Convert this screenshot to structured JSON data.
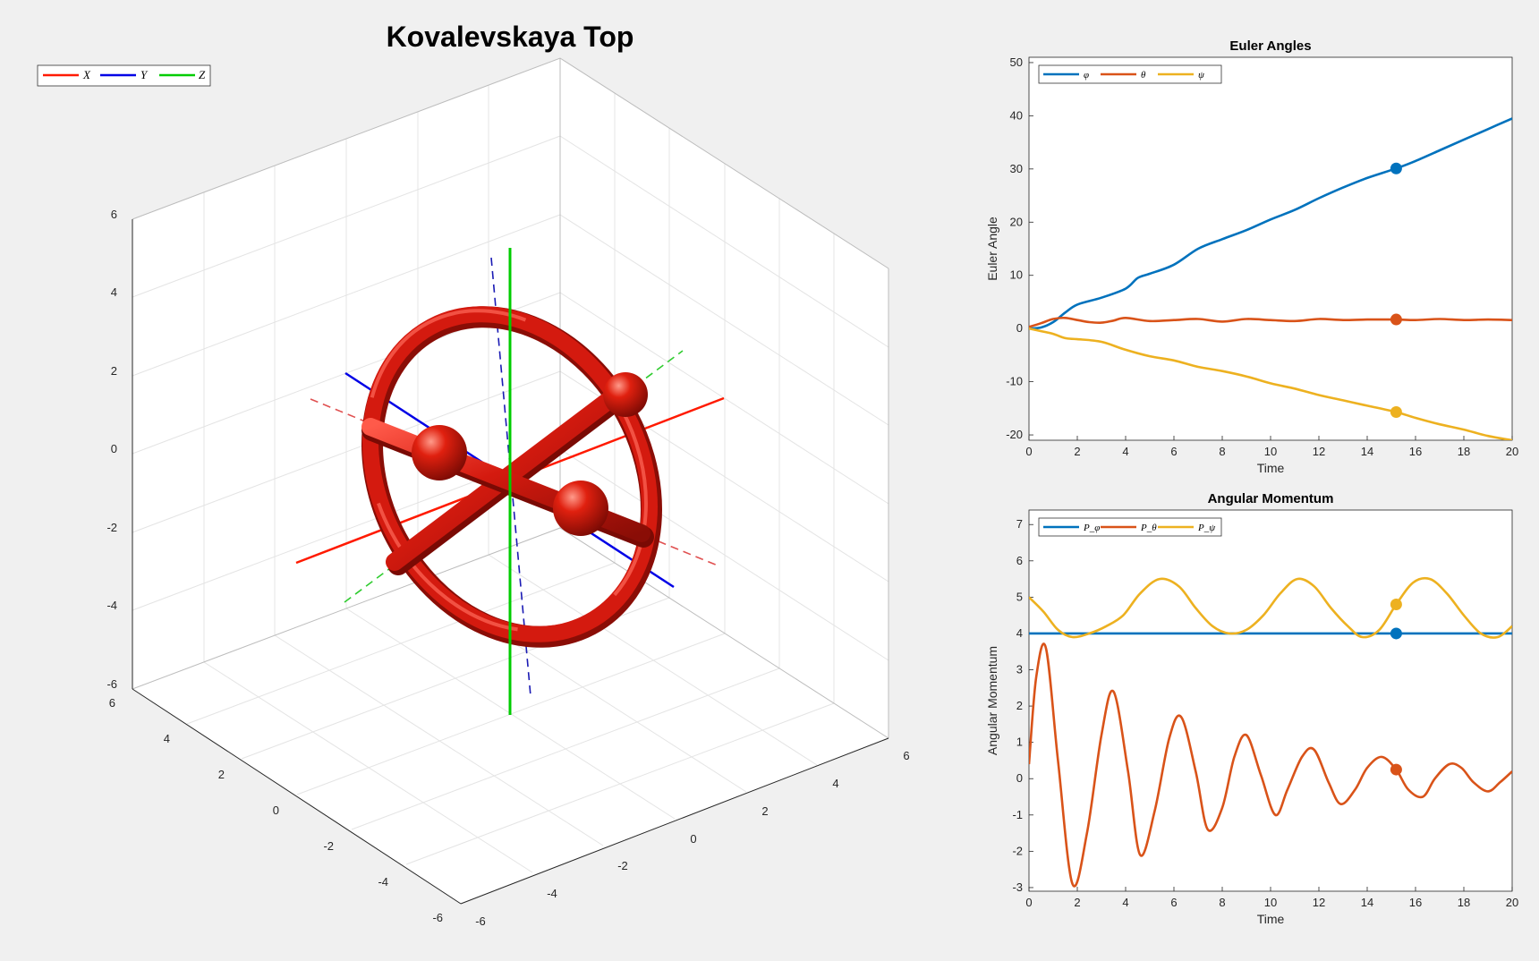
{
  "figure": {
    "title": "Kovalevskaya Top",
    "legend": [
      {
        "label": "X",
        "color": "#ff1a00"
      },
      {
        "label": "Y",
        "color": "#0000e6"
      },
      {
        "label": "Z",
        "color": "#00cc00"
      }
    ],
    "axes3d": {
      "z_ticks": [
        "6",
        "4",
        "2",
        "0",
        "-2",
        "-4",
        "-6"
      ],
      "y_ticks": [
        "6",
        "4",
        "2",
        "0",
        "-2",
        "-4",
        "-6"
      ],
      "x_ticks": [
        "-6",
        "-4",
        "-2",
        "0",
        "2",
        "4",
        "6"
      ]
    },
    "body_color": "#d41a0f"
  },
  "chart_data": [
    {
      "type": "line",
      "title": "Euler Angles",
      "xlabel": "Time",
      "ylabel": "Euler Angle",
      "xlim": [
        0,
        20
      ],
      "ylim": [
        -21,
        51
      ],
      "xticks": [
        0,
        2,
        4,
        6,
        8,
        10,
        12,
        14,
        16,
        18,
        20
      ],
      "yticks": [
        50,
        40,
        30,
        20,
        10,
        0,
        -10,
        -20
      ],
      "legend_placement": "top-left",
      "marker_time": 15.2,
      "series": [
        {
          "name": "φ",
          "color": "#0072bd",
          "x": [
            0,
            0.5,
            1,
            1.5,
            2,
            3,
            4,
            4.5,
            5,
            6,
            7,
            8,
            9,
            10,
            11,
            12,
            13,
            14,
            15.2,
            16,
            17,
            18,
            19,
            20
          ],
          "y": [
            0,
            0.2,
            1.2,
            3,
            4.5,
            5.8,
            7.5,
            9.5,
            10.3,
            12,
            15,
            16.8,
            18.5,
            20.5,
            22.3,
            24.5,
            26.5,
            28.3,
            30.1,
            31.5,
            33.5,
            35.5,
            37.5,
            39.5
          ]
        },
        {
          "name": "θ",
          "color": "#d95319",
          "x": [
            0,
            0.5,
            1,
            1.5,
            2,
            2.5,
            3,
            3.5,
            4,
            5,
            6,
            7,
            8,
            9,
            10,
            11,
            12,
            13,
            14,
            15.2,
            16,
            17,
            18,
            19,
            20
          ],
          "y": [
            0.3,
            1,
            1.8,
            2,
            1.6,
            1.2,
            1.1,
            1.5,
            2,
            1.4,
            1.6,
            1.8,
            1.3,
            1.8,
            1.6,
            1.4,
            1.8,
            1.6,
            1.7,
            1.7,
            1.6,
            1.8,
            1.6,
            1.7,
            1.6
          ]
        },
        {
          "name": "ψ",
          "color": "#edb120",
          "x": [
            0,
            0.5,
            1,
            1.5,
            2,
            3,
            4,
            5,
            6,
            7,
            8,
            9,
            10,
            11,
            12,
            13,
            14,
            15.2,
            16,
            17,
            18,
            19,
            20
          ],
          "y": [
            0,
            -0.5,
            -1,
            -1.8,
            -2,
            -2.5,
            -4,
            -5.2,
            -6,
            -7.2,
            -8,
            -9,
            -10.3,
            -11.3,
            -12.5,
            -13.5,
            -14.5,
            -15.7,
            -16.8,
            -18,
            -19,
            -20.2,
            -21
          ]
        }
      ]
    },
    {
      "type": "line",
      "title": "Angular Momentum",
      "xlabel": "Time",
      "ylabel": "Angular Momentum",
      "xlim": [
        0,
        20
      ],
      "ylim": [
        -3.1,
        7.4
      ],
      "xticks": [
        0,
        2,
        4,
        6,
        8,
        10,
        12,
        14,
        16,
        18,
        20
      ],
      "yticks": [
        7,
        6,
        5,
        4,
        3,
        2,
        1,
        0,
        -1,
        -2,
        -3
      ],
      "legend_placement": "top-left",
      "marker_time": 15.2,
      "series": [
        {
          "name": "P_φ",
          "color": "#0072bd",
          "x": [
            0,
            20
          ],
          "y": [
            4,
            4
          ]
        },
        {
          "name": "P_θ",
          "color": "#d95319",
          "x": [
            0,
            0.3,
            0.7,
            1.2,
            1.8,
            2.4,
            3,
            3.5,
            4.1,
            4.6,
            5.2,
            5.8,
            6.3,
            6.9,
            7.4,
            8,
            8.5,
            9,
            9.6,
            10.2,
            10.7,
            11.3,
            11.8,
            12.4,
            12.9,
            13.5,
            14,
            14.6,
            15.2,
            15.7,
            16.3,
            16.8,
            17.4,
            17.9,
            18.4,
            19,
            19.5,
            20
          ],
          "y": [
            0.4,
            2.8,
            3.6,
            0.5,
            -2.9,
            -1.5,
            1.2,
            2.4,
            0.2,
            -2.1,
            -0.9,
            1.1,
            1.7,
            0.2,
            -1.4,
            -0.8,
            0.6,
            1.2,
            0.1,
            -1.0,
            -0.3,
            0.6,
            0.8,
            -0.1,
            -0.7,
            -0.3,
            0.3,
            0.6,
            0.25,
            -0.3,
            -0.5,
            0,
            0.4,
            0.3,
            -0.1,
            -0.35,
            -0.1,
            0.2
          ]
        },
        {
          "name": "P_ψ",
          "color": "#edb120",
          "x": [
            0,
            0.6,
            1.2,
            1.8,
            2.5,
            3.2,
            3.9,
            4.6,
            5.4,
            6.2,
            6.9,
            7.6,
            8.3,
            9,
            9.7,
            10.4,
            11.1,
            11.8,
            12.5,
            13.2,
            13.8,
            14.5,
            15.2,
            15.9,
            16.6,
            17.3,
            18,
            18.7,
            19.4,
            20
          ],
          "y": [
            5.0,
            4.6,
            4.1,
            3.9,
            4.0,
            4.2,
            4.5,
            5.1,
            5.5,
            5.3,
            4.7,
            4.2,
            4.0,
            4.1,
            4.5,
            5.1,
            5.5,
            5.3,
            4.7,
            4.2,
            3.9,
            4.1,
            4.8,
            5.4,
            5.5,
            5.1,
            4.5,
            4.0,
            3.9,
            4.2
          ]
        }
      ]
    }
  ]
}
